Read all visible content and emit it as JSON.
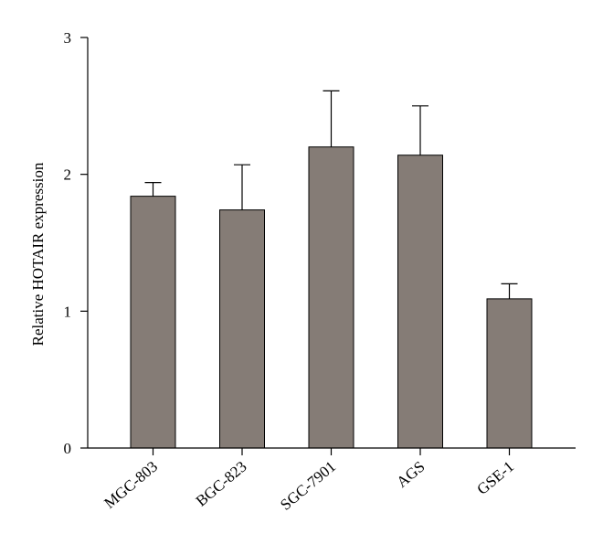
{
  "chart_data": {
    "type": "bar",
    "categories": [
      "MGC-803",
      "BGC-823",
      "SGC-7901",
      "AGS",
      "GSE-1"
    ],
    "values": [
      1.84,
      1.74,
      2.2,
      2.14,
      1.09
    ],
    "errors": [
      0.1,
      0.33,
      0.41,
      0.36,
      0.11
    ],
    "title": "",
    "xlabel": "",
    "ylabel": "Relative HOTAIR expression",
    "ylim": [
      0,
      3
    ],
    "yticks": [
      0,
      1,
      2,
      3
    ],
    "ytick_labels": [
      "0",
      "1",
      "2",
      "3"
    ],
    "grid": false,
    "bar_color": "#857c76"
  }
}
